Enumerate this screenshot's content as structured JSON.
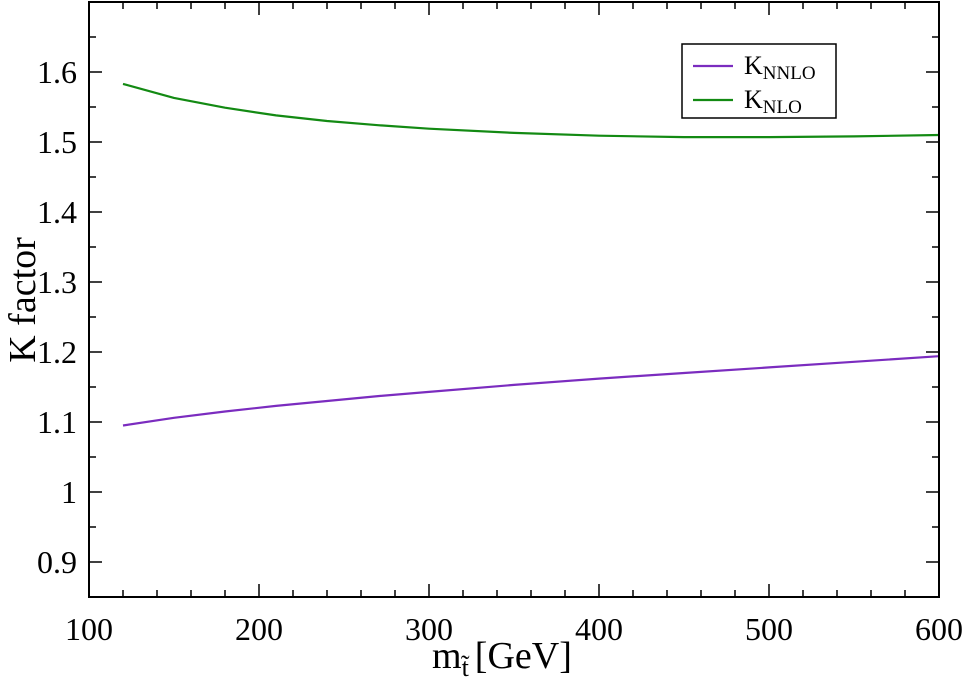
{
  "chart_data": {
    "type": "line",
    "title": "",
    "xlabel_main": "m",
    "xlabel_sub": "t̃",
    "xlabel_unit": "[GeV]",
    "ylabel": "K factor",
    "xlim": [
      100,
      600
    ],
    "ylim": [
      0.85,
      1.7
    ],
    "xticks": [
      100,
      200,
      300,
      400,
      500,
      600
    ],
    "xtick_labels": [
      "100",
      "200",
      "300",
      "400",
      "500",
      "600"
    ],
    "yticks": [
      0.9,
      1.0,
      1.1,
      1.2,
      1.3,
      1.4,
      1.5,
      1.6
    ],
    "ytick_labels": [
      "0.9",
      "1",
      "1.1",
      "1.2",
      "1.3",
      "1.4",
      "1.5",
      "1.6"
    ],
    "x_minor_step": 20,
    "y_minor_step": 0.05,
    "grid": false,
    "legend_position": "top-right",
    "series": [
      {
        "name": "K",
        "name_sub": "NNLO",
        "color": "#7b2cbf",
        "x": [
          120,
          150,
          180,
          210,
          240,
          270,
          300,
          350,
          400,
          450,
          500,
          550,
          600
        ],
        "y": [
          1.095,
          1.106,
          1.115,
          1.123,
          1.13,
          1.137,
          1.143,
          1.153,
          1.162,
          1.17,
          1.178,
          1.186,
          1.194
        ]
      },
      {
        "name": "K",
        "name_sub": "NLO",
        "color": "#138a13",
        "x": [
          120,
          150,
          180,
          210,
          240,
          270,
          300,
          350,
          400,
          450,
          500,
          550,
          600
        ],
        "y": [
          1.583,
          1.563,
          1.549,
          1.538,
          1.53,
          1.524,
          1.519,
          1.513,
          1.509,
          1.507,
          1.507,
          1.508,
          1.51
        ]
      }
    ]
  }
}
